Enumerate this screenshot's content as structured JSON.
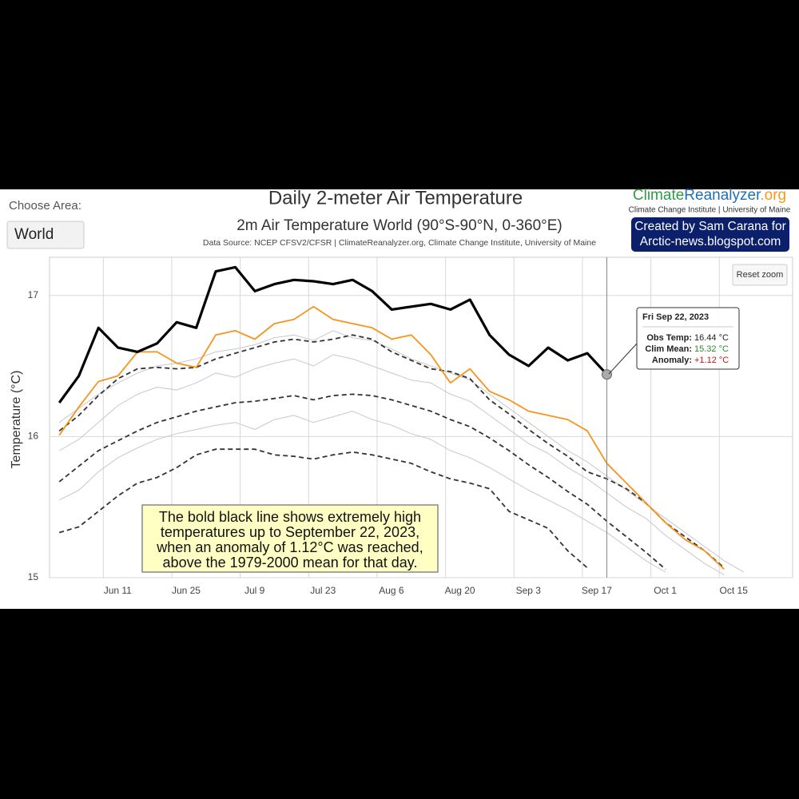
{
  "controls": {
    "area_label": "Choose Area:",
    "area_value": "World",
    "reset_zoom": "Reset zoom"
  },
  "branding": {
    "logo_parts": [
      "Climate",
      "Reanalyzer",
      ".org"
    ],
    "logo_subtitle": "Climate Change Institute | University of Maine",
    "credit": [
      "Created by Sam Carana for",
      "Arctic-news.blogspot.com"
    ]
  },
  "chart_data": {
    "type": "line",
    "title": "Daily 2-meter Air Temperature",
    "subtitle": "2m Air Temperature World (90°S-90°N, 0-360°E)",
    "source": "Data Source: NCEP CFSV2/CFSR | ClimateReanalyzer.org, Climate Change Institute, University of Maine",
    "y_label": "Temperature (°C)",
    "grid": true,
    "xlim": [
      151,
      303
    ],
    "xticks": [
      {
        "value": 162,
        "label": "Jun 11"
      },
      {
        "value": 176,
        "label": "Jun 25"
      },
      {
        "value": 190,
        "label": "Jul 9"
      },
      {
        "value": 204,
        "label": "Jul 23"
      },
      {
        "value": 218,
        "label": "Aug 6"
      },
      {
        "value": 232,
        "label": "Aug 20"
      },
      {
        "value": 246,
        "label": "Sep 3"
      },
      {
        "value": 260,
        "label": "Sep 17"
      },
      {
        "value": 274,
        "label": "Oct 1"
      },
      {
        "value": 288,
        "label": "Oct 15"
      }
    ],
    "ylim": [
      15,
      17.27
    ],
    "yticks": [
      15,
      16,
      17
    ],
    "x": [
      153,
      157,
      161,
      165,
      169,
      173,
      177,
      181,
      185,
      189,
      193,
      197,
      201,
      205,
      209,
      213,
      217,
      221,
      225,
      229,
      233,
      237,
      241,
      245,
      249,
      253,
      257,
      261,
      265,
      269,
      273,
      277,
      281,
      285,
      289,
      293,
      297,
      301
    ],
    "series": [
      {
        "color": "#c8c8c8",
        "style": "thin",
        "values": [
          15.9,
          15.98,
          16.1,
          16.22,
          16.3,
          16.35,
          16.33,
          16.38,
          16.45,
          16.42,
          16.48,
          16.52,
          16.55,
          16.5,
          16.58,
          16.55,
          16.5,
          16.45,
          16.4,
          16.38,
          16.3,
          16.25,
          16.15,
          16.05,
          15.95,
          15.88,
          15.78,
          15.7,
          15.6,
          15.5,
          15.42,
          15.3,
          15.2,
          15.1,
          15.02,
          null,
          null,
          null
        ]
      },
      {
        "color": "#c8c8c8",
        "style": "thin",
        "values": [
          15.55,
          15.62,
          15.75,
          15.85,
          15.92,
          15.98,
          16.02,
          16.05,
          16.08,
          16.1,
          16.05,
          16.12,
          16.15,
          16.1,
          16.14,
          16.18,
          16.12,
          16.08,
          16.02,
          15.98,
          15.9,
          15.85,
          15.78,
          15.7,
          15.62,
          15.55,
          15.48,
          15.4,
          15.32,
          15.22,
          15.12,
          15.04,
          null,
          null,
          null,
          null,
          null,
          null
        ]
      },
      {
        "color": "#c8c8c8",
        "style": "thin",
        "values": [
          16.1,
          16.2,
          16.3,
          16.38,
          16.45,
          16.5,
          16.52,
          16.55,
          16.6,
          16.62,
          16.65,
          16.7,
          16.72,
          16.68,
          16.75,
          16.7,
          16.68,
          16.62,
          16.55,
          16.5,
          16.45,
          16.4,
          16.3,
          16.2,
          16.1,
          16.0,
          15.9,
          15.82,
          15.72,
          15.62,
          15.52,
          15.42,
          15.32,
          15.22,
          15.12,
          15.04,
          null,
          null
        ]
      },
      {
        "color": "#333333",
        "style": "dashed",
        "values": [
          16.04,
          16.15,
          16.29,
          16.41,
          16.48,
          16.49,
          16.48,
          16.49,
          16.55,
          16.59,
          16.63,
          16.67,
          16.69,
          16.67,
          16.69,
          16.72,
          16.69,
          16.6,
          16.54,
          16.48,
          16.46,
          16.41,
          16.26,
          16.16,
          16.05,
          15.95,
          15.86,
          15.75,
          15.7,
          15.63,
          15.53,
          15.39,
          15.29,
          15.19,
          15.07,
          null,
          null,
          null
        ]
      },
      {
        "color": "#333333",
        "style": "dashed",
        "values": [
          15.68,
          15.79,
          15.9,
          15.97,
          16.04,
          16.1,
          16.14,
          16.18,
          16.21,
          16.24,
          16.25,
          16.27,
          16.29,
          16.26,
          16.29,
          16.3,
          16.29,
          16.26,
          16.22,
          16.18,
          16.12,
          16.07,
          15.99,
          15.9,
          15.8,
          15.71,
          15.61,
          15.52,
          15.4,
          15.29,
          15.18,
          15.06,
          null,
          null,
          null,
          null,
          null,
          null
        ]
      },
      {
        "color": "#333333",
        "style": "dashed",
        "values": [
          15.32,
          15.36,
          15.47,
          15.58,
          15.67,
          15.71,
          15.78,
          15.87,
          15.91,
          15.91,
          15.91,
          15.87,
          15.86,
          15.84,
          15.87,
          15.89,
          15.87,
          15.84,
          15.81,
          15.75,
          15.7,
          15.67,
          15.63,
          15.47,
          15.41,
          15.35,
          15.19,
          15.07,
          null,
          null,
          null,
          null,
          null,
          null,
          null,
          null,
          null,
          null
        ]
      },
      {
        "color": "#f7941d",
        "style": "normal",
        "values": [
          16.01,
          16.21,
          16.39,
          16.43,
          16.6,
          16.6,
          16.52,
          16.49,
          16.72,
          16.75,
          16.69,
          16.8,
          16.83,
          16.92,
          16.83,
          16.8,
          16.77,
          16.69,
          16.72,
          16.58,
          16.38,
          16.48,
          16.32,
          16.26,
          16.18,
          16.15,
          16.12,
          16.04,
          15.81,
          15.67,
          15.53,
          15.39,
          15.27,
          15.19,
          15.06,
          null,
          null,
          null
        ]
      },
      {
        "color": "#000000",
        "style": "bold",
        "values": [
          16.24,
          16.43,
          16.77,
          16.63,
          16.6,
          16.66,
          16.81,
          16.77,
          17.17,
          17.2,
          17.03,
          17.08,
          17.11,
          17.1,
          17.08,
          17.11,
          17.03,
          16.9,
          16.92,
          16.94,
          16.9,
          16.97,
          16.72,
          16.58,
          16.5,
          16.63,
          16.54,
          16.59,
          16.44,
          null,
          null,
          null,
          null,
          null,
          null,
          null,
          null,
          null
        ]
      }
    ]
  },
  "tooltip": {
    "title": "Fri Sep 22, 2023",
    "rows": [
      {
        "label": "Obs Temp:",
        "value": "16.44 °C",
        "color": "#222222"
      },
      {
        "label": "Clim Mean:",
        "value": "15.32 °C",
        "color": "#2e8b2e"
      },
      {
        "label": "Anomaly:",
        "value": "+1.12 °C",
        "color": "#c0181b"
      }
    ]
  },
  "annotation": {
    "lines": [
      "The bold black line shows extremely high",
      "temperatures up to September 22, 2023,",
      "when an anomaly of 1.12°C was reached,",
      "above the 1979-2000 mean for that day."
    ]
  }
}
